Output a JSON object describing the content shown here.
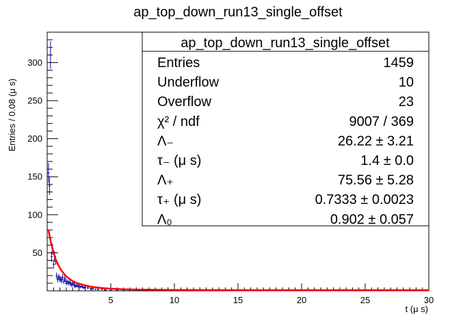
{
  "chart_data": {
    "type": "scatter",
    "title": "ap_top_down_run13_single_offset",
    "xlabel": "t (μ s)",
    "ylabel": "Entries / 0.08 (μ s)",
    "xlim": [
      0,
      30
    ],
    "ylim": [
      0,
      340
    ],
    "x_ticks": [
      "5",
      "10",
      "15",
      "20",
      "25",
      "30"
    ],
    "y_ticks": [
      "50",
      "100",
      "150",
      "200",
      "250",
      "300"
    ],
    "grid": false,
    "legend": "none",
    "series": [
      {
        "kind": "histogram-points",
        "color": "#000099",
        "x": [
          0.1,
          0.18,
          0.26,
          0.34,
          0.42,
          0.5,
          0.58,
          0.66,
          0.74,
          0.82,
          0.9,
          0.98,
          1.06,
          1.14,
          1.22,
          1.3,
          1.38,
          1.46,
          1.54,
          1.62,
          1.7,
          1.78,
          1.86,
          1.94,
          2.02,
          2.1,
          2.18,
          2.26,
          2.34,
          2.42,
          2.5,
          2.6,
          2.7,
          2.8,
          2.9,
          3.0,
          3.2,
          3.4,
          3.6,
          3.8,
          4.0,
          4.3,
          4.6,
          5.0,
          5.5,
          6.0,
          6.5,
          7.0,
          8.0,
          9.0,
          10.0,
          12.0,
          14.0,
          16.0,
          18.0,
          20.0,
          22.0,
          24.0,
          26.0,
          28.0
        ],
        "y": [
          155,
          138,
          310,
          45,
          55,
          35,
          45,
          40,
          20,
          15,
          18,
          16,
          15,
          14,
          18,
          12,
          16,
          13,
          10,
          12,
          10,
          11,
          9,
          8,
          10,
          8,
          7,
          6,
          8,
          6,
          7,
          5,
          6,
          5,
          4,
          5,
          4,
          3,
          3,
          2,
          2,
          2,
          1,
          1,
          1,
          1,
          1,
          1,
          1,
          1,
          1,
          1,
          1,
          1,
          1,
          1,
          1,
          1,
          1,
          1
        ],
        "errors": [
          13,
          12,
          18,
          7,
          7,
          6,
          7,
          6,
          4,
          4,
          4,
          4,
          4,
          4,
          4,
          3,
          4,
          4,
          3,
          3,
          3,
          3,
          3,
          3,
          3,
          3,
          3,
          2,
          3,
          2,
          3,
          2,
          2,
          2,
          2,
          2,
          2,
          2,
          2,
          1,
          1,
          1,
          1,
          1,
          1,
          1,
          1,
          1,
          1,
          1,
          1,
          1,
          1,
          1,
          1,
          1,
          1,
          1,
          1,
          1
        ]
      },
      {
        "kind": "fit-curve",
        "color": "#ff0000",
        "x": [
          0.1,
          0.3,
          0.5,
          0.7,
          0.9,
          1.1,
          1.3,
          1.5,
          1.8,
          2.1,
          2.4,
          2.8,
          3.2,
          3.6,
          4.0,
          4.5,
          5.0,
          6.0,
          7.0,
          8.0,
          10.0,
          15.0,
          20.0,
          25.0,
          30.0
        ],
        "y": [
          80,
          63,
          50,
          40,
          33,
          27,
          23,
          19,
          15,
          12,
          10,
          8,
          6.3,
          5.1,
          4.2,
          3.4,
          2.8,
          2.1,
          1.7,
          1.4,
          1.1,
          0.9,
          0.9,
          0.9,
          0.9
        ]
      }
    ],
    "stats": {
      "title": "ap_top_down_run13_single_offset",
      "rows": [
        {
          "label": "Entries",
          "value": "1459"
        },
        {
          "label": "Underflow",
          "value": "10"
        },
        {
          "label": "Overflow",
          "value": "23"
        },
        {
          "label": "χ² / ndf",
          "value": "9007 / 369"
        },
        {
          "label": "Λ₋",
          "value": "26.22 ± 3.21"
        },
        {
          "label": "τ₋ (μ s)",
          "value": "1.4 ± 0.0"
        },
        {
          "label": "Λ₊",
          "value": "75.56 ± 5.28"
        },
        {
          "label": "τ₊ (μ s)",
          "value": "0.7333 ± 0.0023"
        },
        {
          "label": "Λ₀",
          "value": "0.902 ± 0.057"
        }
      ]
    }
  }
}
